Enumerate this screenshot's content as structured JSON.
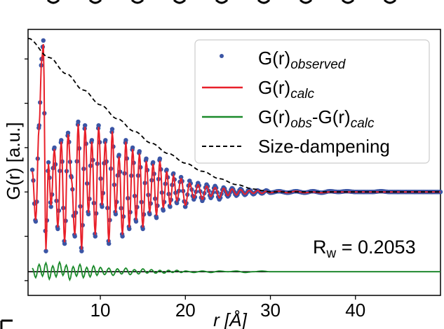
{
  "chart_data": {
    "type": "line",
    "title": "",
    "xlabel": "r [Å]",
    "ylabel": "G(r) [a.u.]",
    "xlim": [
      1.5,
      50
    ],
    "ylim": [
      -1.4,
      2.2
    ],
    "x_ticks": [
      10,
      20,
      30,
      40
    ],
    "grid": false,
    "legend": {
      "placement": "top-right",
      "entries": [
        {
          "id": "obs",
          "label": "G(r)",
          "sub": "observed",
          "style": "dots",
          "color": "#3b55a5"
        },
        {
          "id": "calc",
          "label": "G(r)",
          "sub": "calc",
          "style": "line",
          "color": "#e8202a"
        },
        {
          "id": "diff",
          "label1": "G(r)",
          "sub1": "obs",
          "mid": "-G(r)",
          "sub2": "calc",
          "style": "line",
          "color": "#1a8a2a"
        },
        {
          "id": "damp",
          "label": "Size-dampening",
          "style": "dashed",
          "color": "#000000"
        }
      ]
    },
    "annotation": {
      "text": "R",
      "sub": "w",
      "rest": " = 0.2053"
    },
    "series": [
      {
        "name": "G(r)observed",
        "color": "#3b55a5",
        "x": [
          2.0,
          2.4,
          2.8,
          3.1,
          3.3,
          3.6,
          3.9,
          4.2,
          4.6,
          5.0,
          5.4,
          5.8,
          6.2,
          6.6,
          7.0,
          7.4,
          7.8,
          8.2,
          8.6,
          9.0,
          9.4,
          9.8,
          10.2,
          10.6,
          11.0,
          11.4,
          11.8,
          12.2,
          12.6,
          13.0,
          13.4,
          13.8,
          14.2,
          14.6,
          15.0,
          15.4,
          15.8,
          16.2,
          16.6,
          17.0,
          17.4,
          17.8,
          18.2,
          18.6,
          19.0,
          19.5,
          20.0,
          20.5,
          21.0,
          21.5,
          22.0,
          22.5,
          23.0,
          23.5,
          24.0,
          24.5,
          25.0,
          25.5,
          26.0,
          26.5,
          27.0,
          27.5,
          28.0,
          28.5,
          29.0,
          29.5,
          30.0,
          31.0,
          32.0,
          33.0,
          34.0,
          35.0,
          36.0,
          37.0,
          38.0,
          39.0,
          40.0,
          41.0,
          42.0,
          43.0,
          44.0,
          45.0,
          46.0,
          47.0,
          48.0,
          49.0,
          50.0
        ],
        "y": [
          0.3,
          -0.4,
          0.9,
          1.8,
          2.05,
          -0.8,
          0.4,
          -0.2,
          0.6,
          -0.5,
          0.7,
          -0.7,
          0.8,
          0.2,
          -0.6,
          0.95,
          -0.8,
          0.9,
          -0.3,
          0.7,
          -0.6,
          0.9,
          -0.2,
          0.7,
          -0.7,
          0.85,
          -0.3,
          0.5,
          -0.6,
          0.7,
          -0.5,
          0.6,
          -0.4,
          0.55,
          -0.5,
          0.45,
          -0.3,
          0.4,
          -0.35,
          0.45,
          -0.25,
          0.3,
          -0.2,
          0.25,
          -0.15,
          0.2,
          -0.2,
          0.15,
          -0.1,
          0.12,
          -0.12,
          0.1,
          -0.08,
          0.08,
          -0.1,
          0.06,
          -0.06,
          0.05,
          -0.05,
          0.04,
          -0.04,
          0.03,
          -0.03,
          0.02,
          -0.02,
          0.02,
          -0.01,
          0.01,
          -0.01,
          0.01,
          -0.01,
          0.01,
          -0.01,
          0.01,
          0.0,
          0.01,
          0.0,
          0.0,
          0.0,
          0.01,
          0.0,
          0.0,
          0.0,
          0.0,
          0.0,
          0.0,
          0.0
        ]
      },
      {
        "name": "G(r)calc",
        "color": "#e8202a",
        "x": [
          2.0,
          2.4,
          2.8,
          3.1,
          3.3,
          3.6,
          3.9,
          4.2,
          4.6,
          5.0,
          5.4,
          5.8,
          6.2,
          6.6,
          7.0,
          7.4,
          7.8,
          8.2,
          8.6,
          9.0,
          9.4,
          9.8,
          10.2,
          10.6,
          11.0,
          11.4,
          11.8,
          12.2,
          12.6,
          13.0,
          13.4,
          13.8,
          14.2,
          14.6,
          15.0,
          15.4,
          15.8,
          16.2,
          16.6,
          17.0,
          17.4,
          17.8,
          18.2,
          18.6,
          19.0,
          19.5,
          20.0,
          20.5,
          21.0,
          21.5,
          22.0,
          22.5,
          23.0,
          23.5,
          24.0,
          24.5,
          25.0,
          25.5,
          26.0,
          26.5,
          27.0,
          27.5,
          28.0,
          28.5,
          29.0,
          29.5,
          30.0,
          31.0,
          32.0,
          33.0,
          34.0,
          35.0,
          36.0,
          37.0,
          38.0,
          39.0,
          40.0,
          41.0,
          42.0,
          43.0,
          44.0,
          45.0,
          46.0,
          47.0,
          48.0,
          49.0,
          50.0
        ],
        "y": [
          0.28,
          -0.38,
          0.88,
          1.78,
          2.0,
          -0.78,
          0.38,
          -0.18,
          0.58,
          -0.48,
          0.68,
          -0.68,
          0.78,
          0.18,
          -0.58,
          0.92,
          -0.78,
          0.88,
          -0.28,
          0.68,
          -0.58,
          0.88,
          -0.18,
          0.68,
          -0.68,
          0.82,
          -0.28,
          0.48,
          -0.58,
          0.68,
          -0.48,
          0.58,
          -0.38,
          0.52,
          -0.48,
          0.42,
          -0.28,
          0.38,
          -0.32,
          0.42,
          -0.22,
          0.28,
          -0.18,
          0.22,
          -0.12,
          0.18,
          -0.18,
          0.12,
          -0.08,
          0.1,
          -0.1,
          0.08,
          -0.06,
          0.06,
          -0.08,
          0.05,
          -0.05,
          0.04,
          -0.04,
          0.03,
          -0.03,
          0.02,
          -0.02,
          0.02,
          -0.02,
          0.01,
          -0.01,
          0.01,
          -0.01,
          0.01,
          -0.01,
          0.0,
          -0.01,
          0.0,
          0.0,
          0.0,
          0.0,
          0.0,
          0.0,
          0.0,
          0.0,
          0.0,
          0.0,
          0.0,
          0.0,
          0.0,
          0.0
        ]
      },
      {
        "name": "G(r)obs-G(r)calc",
        "color": "#1a8a2a",
        "offset": -1.08,
        "x": [
          2.0,
          2.4,
          2.8,
          3.2,
          3.6,
          4.0,
          4.4,
          4.8,
          5.2,
          5.6,
          6.0,
          6.4,
          6.8,
          7.2,
          7.6,
          8.0,
          8.4,
          8.8,
          9.2,
          9.6,
          10.0,
          10.5,
          11.0,
          11.5,
          12.0,
          12.5,
          13.0,
          13.5,
          14.0,
          14.5,
          15.0,
          15.5,
          16.0,
          16.5,
          17.0,
          17.5,
          18.0,
          18.5,
          19.0,
          19.5,
          20.0,
          21.0,
          22.0,
          23.0,
          24.0,
          25.0,
          26.0,
          27.0,
          28.0,
          29.0,
          30.0,
          32.0,
          34.0,
          36.0,
          38.0,
          40.0,
          42.0,
          44.0,
          46.0,
          48.0,
          50.0
        ],
        "y": [
          0.05,
          -0.08,
          0.1,
          -0.06,
          0.12,
          -0.1,
          0.08,
          -0.07,
          0.13,
          -0.05,
          0.09,
          -0.11,
          0.07,
          -0.06,
          0.1,
          -0.08,
          0.06,
          -0.07,
          0.08,
          -0.05,
          0.06,
          -0.04,
          0.05,
          -0.05,
          0.04,
          -0.03,
          0.05,
          -0.04,
          0.03,
          -0.03,
          0.04,
          -0.02,
          0.03,
          -0.02,
          0.02,
          -0.02,
          0.02,
          -0.01,
          0.02,
          -0.01,
          0.01,
          -0.01,
          0.01,
          -0.01,
          0.01,
          0.0,
          0.01,
          -0.01,
          0.0,
          0.01,
          0.0,
          0.0,
          0.0,
          0.0,
          0.0,
          0.0,
          0.0,
          0.0,
          0.0,
          0.0,
          0.0
        ]
      },
      {
        "name": "Size-dampening",
        "color": "#000000",
        "x": [
          1.5,
          4,
          6,
          8,
          10,
          12,
          14,
          16,
          18,
          20,
          22,
          24,
          26,
          28,
          29,
          30,
          32,
          35,
          40,
          45,
          50
        ],
        "y": [
          2.08,
          1.82,
          1.6,
          1.38,
          1.18,
          0.99,
          0.82,
          0.66,
          0.52,
          0.39,
          0.28,
          0.18,
          0.1,
          0.04,
          0.02,
          0.0,
          0.0,
          0.0,
          0.0,
          0.0,
          0.0
        ]
      }
    ]
  }
}
